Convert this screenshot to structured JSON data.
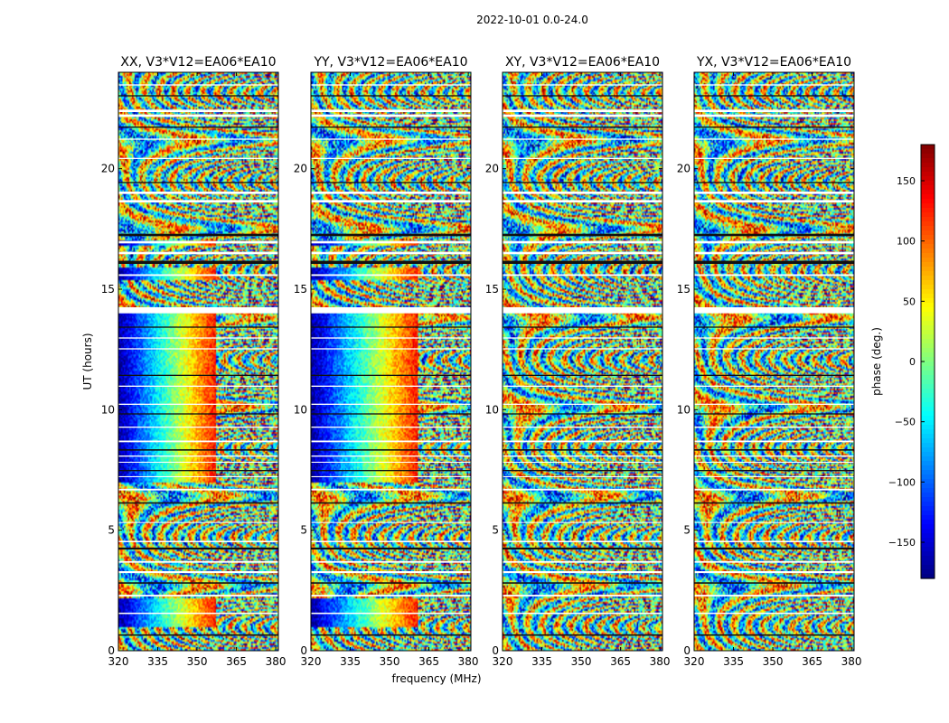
{
  "figure": {
    "suptitle": "2022-10-01 0.0-24.0",
    "xlabel": "frequency (MHz)",
    "ylabel": "UT (hours)",
    "colorbar_label": "phase (deg.)"
  },
  "chart_data": {
    "type": "heatmap",
    "x_range": [
      320,
      381
    ],
    "y_range": [
      0,
      24
    ],
    "x_ticks": [
      320,
      335,
      350,
      365,
      380
    ],
    "y_ticks": [
      0,
      5,
      10,
      15,
      20
    ],
    "color_range": [
      -180,
      180
    ],
    "colorbar_ticks": [
      150,
      100,
      50,
      0,
      -50,
      -100,
      -150
    ],
    "colormap": "jet",
    "grid": false,
    "panels": [
      {
        "title": "XX, V3*V12=EA06*EA10",
        "coherent": true
      },
      {
        "title": "YY, V3*V12=EA06*EA10",
        "coherent": true
      },
      {
        "title": "XY, V3*V12=EA06*EA10",
        "coherent": false
      },
      {
        "title": "YX, V3*V12=EA06*EA10",
        "coherent": false
      }
    ],
    "flag_bands_ut": [
      [
        0.62,
        0.68
      ],
      [
        1.52,
        1.58
      ],
      [
        2.25,
        2.32
      ],
      [
        2.78,
        2.84
      ],
      [
        3.22,
        3.3
      ],
      [
        3.65,
        3.72
      ],
      [
        4.2,
        4.28
      ],
      [
        4.5,
        4.56
      ],
      [
        5.3,
        5.34
      ],
      [
        6.1,
        6.16
      ],
      [
        6.65,
        6.72
      ],
      [
        7.2,
        7.24
      ],
      [
        7.45,
        7.5
      ],
      [
        7.8,
        7.84
      ],
      [
        8.05,
        8.1
      ],
      [
        8.3,
        8.36
      ],
      [
        8.65,
        8.72
      ],
      [
        9.25,
        9.3
      ],
      [
        9.8,
        9.85
      ],
      [
        10.2,
        10.25
      ],
      [
        10.95,
        11.0
      ],
      [
        11.4,
        11.45
      ],
      [
        12.5,
        12.55
      ],
      [
        12.95,
        13.0
      ],
      [
        13.4,
        13.45
      ],
      [
        14.0,
        14.25
      ],
      [
        15.55,
        15.62
      ],
      [
        16.05,
        16.18
      ],
      [
        16.45,
        16.55
      ],
      [
        16.9,
        17.0
      ],
      [
        17.2,
        17.3
      ],
      [
        18.6,
        18.7
      ],
      [
        18.95,
        19.05
      ],
      [
        19.4,
        19.45
      ],
      [
        20.4,
        20.45
      ],
      [
        21.2,
        21.25
      ],
      [
        21.7,
        21.75
      ],
      [
        22.15,
        22.25
      ],
      [
        22.35,
        22.45
      ],
      [
        23.0,
        23.05
      ],
      [
        23.45,
        23.5
      ]
    ]
  }
}
